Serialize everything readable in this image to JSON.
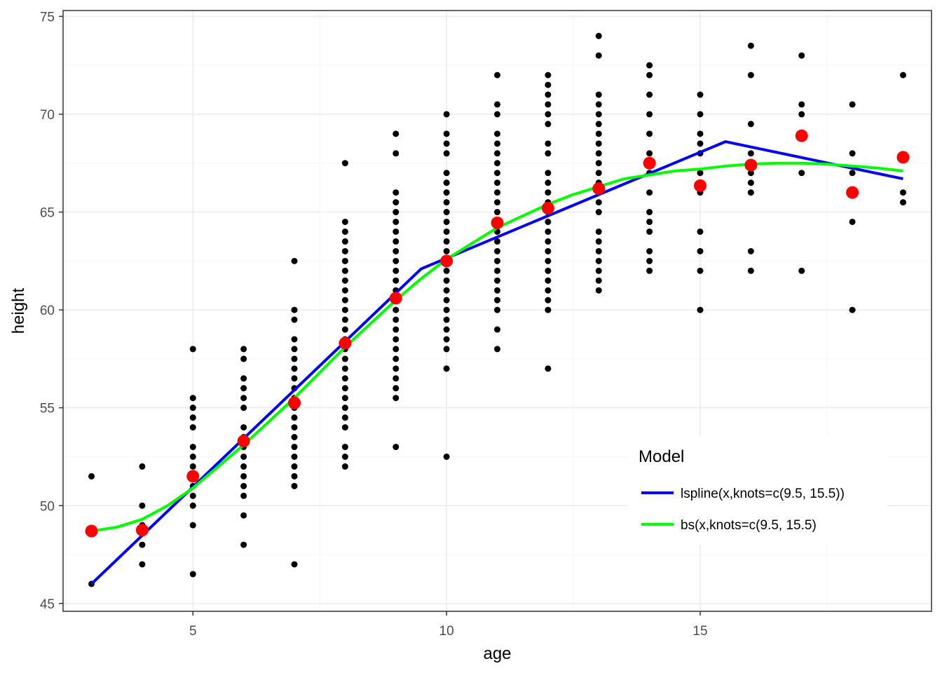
{
  "chart_data": {
    "type": "scatter",
    "xlabel": "age",
    "ylabel": "height",
    "xlim": [
      2.44,
      19.56
    ],
    "ylim": [
      44.6,
      75.3
    ],
    "x_ticks": [
      5,
      10,
      15
    ],
    "y_ticks": [
      45,
      50,
      55,
      60,
      65,
      70,
      75
    ],
    "x_tick_labels": [
      "5",
      "10",
      "15"
    ],
    "y_tick_labels": [
      "45",
      "50",
      "55",
      "60",
      "65",
      "70",
      "75"
    ],
    "grid": true,
    "points": [
      {
        "age": 3,
        "heights": [
          46,
          51.5
        ]
      },
      {
        "age": 4,
        "heights": [
          47,
          48,
          49,
          50,
          52
        ]
      },
      {
        "age": 5,
        "heights": [
          46.5,
          49,
          50,
          50.5,
          51,
          51.5,
          52,
          52.5,
          53,
          54,
          54.5,
          55,
          55.5,
          58
        ]
      },
      {
        "age": 6,
        "heights": [
          48,
          49.5,
          50.5,
          51,
          51.5,
          52,
          52.5,
          53,
          53.5,
          54,
          55,
          55.5,
          56,
          56.5,
          57.5,
          58
        ]
      },
      {
        "age": 7,
        "heights": [
          47,
          51,
          51.5,
          52,
          52.5,
          53,
          53.5,
          54,
          54.5,
          55,
          55.5,
          56,
          56.5,
          57,
          57.5,
          58,
          58.5,
          59.5,
          60,
          62.5
        ]
      },
      {
        "age": 8,
        "heights": [
          52,
          52.5,
          53,
          54,
          54.5,
          55,
          55.5,
          56,
          56.5,
          57,
          57.5,
          58,
          58.5,
          59,
          59.5,
          60,
          60.5,
          61,
          61.5,
          62,
          62.5,
          63,
          63.5,
          64,
          64.5,
          67.5
        ]
      },
      {
        "age": 9,
        "heights": [
          53,
          55.5,
          56,
          56.5,
          57,
          57.5,
          58,
          58.5,
          59,
          59.5,
          60,
          60.5,
          61,
          61.5,
          62,
          62.5,
          63,
          63.5,
          64,
          64.5,
          65,
          65.5,
          66,
          68,
          69
        ]
      },
      {
        "age": 10,
        "heights": [
          52.5,
          57,
          58,
          58.5,
          59,
          59.5,
          60,
          60.5,
          61,
          61.5,
          62,
          62.5,
          63,
          63.5,
          64,
          64.5,
          65,
          65.5,
          66,
          66.5,
          67,
          68,
          68.5,
          69,
          70
        ]
      },
      {
        "age": 11,
        "heights": [
          58,
          59,
          60,
          60.5,
          61,
          61.5,
          62,
          62.5,
          63,
          63.5,
          64,
          64.5,
          65,
          65.5,
          66,
          66.5,
          67,
          67.5,
          68,
          68.5,
          69,
          70,
          70.5,
          72
        ]
      },
      {
        "age": 12,
        "heights": [
          57,
          60,
          60.5,
          61,
          61.5,
          62,
          62.5,
          63,
          63.5,
          64,
          64.5,
          65,
          65.5,
          66,
          66.5,
          67,
          68,
          68.5,
          69.5,
          70,
          70.5,
          71,
          71.5,
          72
        ]
      },
      {
        "age": 13,
        "heights": [
          61,
          61.5,
          62,
          62.5,
          63,
          63.5,
          64,
          65,
          65.5,
          66,
          66.5,
          67,
          67.5,
          68,
          68.5,
          69,
          69.5,
          70,
          70.5,
          71,
          73,
          74
        ]
      },
      {
        "age": 14,
        "heights": [
          62,
          62.5,
          63,
          64,
          64.5,
          65,
          66,
          67,
          67.5,
          68,
          69,
          70,
          71,
          72,
          72.5
        ]
      },
      {
        "age": 15,
        "heights": [
          60,
          62,
          63,
          64,
          66,
          66.5,
          67,
          68,
          68.5,
          69,
          70,
          71
        ]
      },
      {
        "age": 16,
        "heights": [
          62,
          63,
          66,
          66.5,
          67,
          67.5,
          68,
          69.5,
          72,
          73.5
        ]
      },
      {
        "age": 17,
        "heights": [
          62,
          67,
          70,
          70.5,
          73
        ]
      },
      {
        "age": 18,
        "heights": [
          60,
          64.5,
          67,
          68,
          70.5
        ]
      },
      {
        "age": 19,
        "heights": [
          65.5,
          66,
          72
        ]
      }
    ],
    "means": [
      {
        "age": 3,
        "height": 48.7
      },
      {
        "age": 4,
        "height": 48.75
      },
      {
        "age": 5,
        "height": 51.5
      },
      {
        "age": 6,
        "height": 53.3
      },
      {
        "age": 7,
        "height": 55.25
      },
      {
        "age": 8,
        "height": 58.3
      },
      {
        "age": 9,
        "height": 60.6
      },
      {
        "age": 10,
        "height": 62.5
      },
      {
        "age": 11,
        "height": 64.45
      },
      {
        "age": 12,
        "height": 65.2
      },
      {
        "age": 13,
        "height": 66.2
      },
      {
        "age": 14,
        "height": 67.5
      },
      {
        "age": 15,
        "height": 66.35
      },
      {
        "age": 16,
        "height": 67.4
      },
      {
        "age": 17,
        "height": 68.9
      },
      {
        "age": 18,
        "height": 66
      },
      {
        "age": 19,
        "height": 67.8
      }
    ],
    "series": [
      {
        "name": "lspline(x,knots=c(9.5, 15.5))",
        "color": "#0000ff",
        "x": [
          3,
          9.5,
          15.5,
          19
        ],
        "y": [
          46,
          62.1,
          68.6,
          66.7
        ]
      },
      {
        "name": "bs(x,knots=c(9.5, 15.5)",
        "color": "#00ff00",
        "x": [
          3,
          3.5,
          4,
          4.5,
          5,
          5.5,
          6,
          6.5,
          7,
          7.5,
          8,
          8.5,
          9,
          9.5,
          10,
          10.5,
          11,
          11.5,
          12,
          12.5,
          13,
          13.5,
          14,
          14.5,
          15,
          15.5,
          16,
          16.5,
          17,
          17.5,
          18,
          18.5,
          19
        ],
        "y": [
          48.7,
          48.9,
          49.3,
          50.0,
          50.9,
          52.0,
          53.1,
          54.3,
          55.5,
          56.8,
          58.1,
          59.3,
          60.5,
          61.6,
          62.6,
          63.4,
          64.2,
          64.8,
          65.4,
          65.9,
          66.3,
          66.7,
          66.9,
          67.1,
          67.2,
          67.35,
          67.45,
          67.5,
          67.5,
          67.45,
          67.35,
          67.25,
          67.1
        ]
      }
    ],
    "legend": {
      "title": "Model",
      "position": "bottom-right inside",
      "items": [
        {
          "label": "lspline(x,knots=c(9.5, 15.5))",
          "color": "#0000ff"
        },
        {
          "label": "bs(x,knots=c(9.5, 15.5)",
          "color": "#00ff00"
        }
      ]
    },
    "colors": {
      "points": "#000000",
      "means": "#ff0000",
      "grid_major": "#ebebeb",
      "grid_minor": "#f5f5f5",
      "panel_border": "#333333"
    }
  }
}
